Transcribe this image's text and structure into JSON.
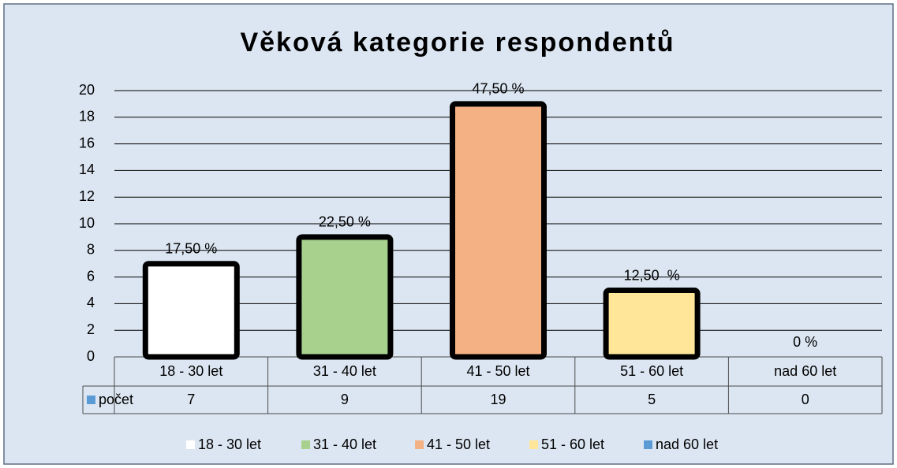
{
  "chart_data": {
    "type": "bar",
    "title": "Věková kategorie respondentů",
    "categories": [
      "18 - 30 let",
      "31 - 40 let",
      "41 - 50 let",
      "51 - 60 let",
      "nad 60 let"
    ],
    "series": [
      {
        "name": "počet",
        "color": "#5b9bd5",
        "values": [
          7,
          9,
          19,
          5,
          0
        ],
        "colors": [
          "#ffffff",
          "#a9d18e",
          "#f4b183",
          "#ffe699",
          "#5b9bd5"
        ]
      }
    ],
    "annotations": [
      "17,50 %",
      "22,50 %",
      "47,50 %",
      "12,50  %",
      "0 %"
    ],
    "ylim": [
      0,
      20
    ],
    "yticks": [
      0,
      2,
      4,
      6,
      8,
      10,
      12,
      14,
      16,
      18,
      20
    ],
    "grid": true,
    "legend": "bottom"
  }
}
